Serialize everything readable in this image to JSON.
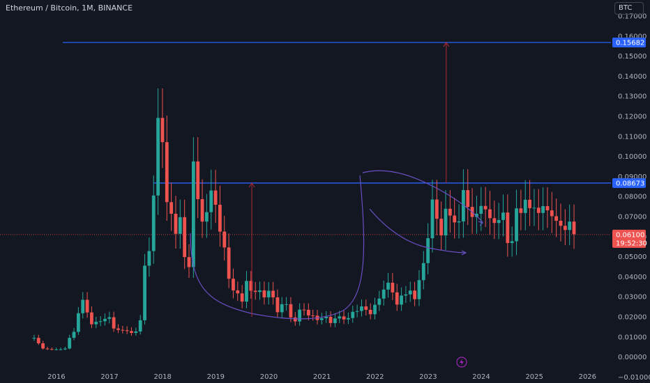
{
  "header": {
    "title": "Ethereum / Bitcoin, 1M, BINANCE",
    "currency_button": "BTC"
  },
  "colors": {
    "background": "#131722",
    "up": "#26a69a",
    "down": "#ef5350",
    "hline": "#2962ff",
    "arrow": "#b22833",
    "curve": "#6a4fc4"
  },
  "icons": {
    "bottom": "lightning-icon"
  },
  "chart_data": {
    "type": "candlestick",
    "title": "Ethereum / Bitcoin, 1M, BINANCE",
    "ylim": [
      -0.013,
      0.178
    ],
    "xlim": [
      2015.2,
      2026.6
    ],
    "y_ticks": [
      "0.17000",
      "0.16000",
      "0.15000",
      "0.14000",
      "0.13000",
      "0.12000",
      "0.11000",
      "0.10000",
      "0.09000",
      "0.08000",
      "0.07000",
      "0.06000",
      "0.05000",
      "0.04000",
      "0.03000",
      "0.02000",
      "0.01000",
      "0.00000",
      "−0.01000"
    ],
    "y_tick_values": [
      0.17,
      0.16,
      0.15,
      0.14,
      0.13,
      0.12,
      0.11,
      0.1,
      0.09,
      0.08,
      0.07,
      0.06,
      0.05,
      0.04,
      0.03,
      0.02,
      0.01,
      0.0,
      -0.01
    ],
    "x_ticks": [
      "2016",
      "2017",
      "2018",
      "2019",
      "2020",
      "2021",
      "2022",
      "2023",
      "2024",
      "2025",
      "2026"
    ],
    "x_tick_values": [
      2016,
      2017,
      2018,
      2019,
      2020,
      2021,
      2022,
      2023,
      2024,
      2025,
      2026
    ],
    "horizontal_lines": [
      {
        "value": 0.15682,
        "label": "0.15682",
        "from_x": 2016.12
      },
      {
        "value": 0.08673,
        "label": "0.08673",
        "from_x": 2017.83
      }
    ],
    "last_price": {
      "value": 0.061,
      "label": "0.06100",
      "countdown": "19:52:30"
    },
    "arrows": [
      {
        "x": 2019.68,
        "from": 0.02,
        "to": 0.0867
      },
      {
        "x": 2023.34,
        "from": 0.0867,
        "to": 0.1568
      }
    ],
    "closes": [
      0.0095,
      0.0068,
      0.0042,
      0.0039,
      0.0038,
      0.0038,
      0.0038,
      0.0042,
      0.0095,
      0.0125,
      0.0218,
      0.0285,
      0.0222,
      0.0163,
      0.0175,
      0.0178,
      0.019,
      0.0198,
      0.0142,
      0.0135,
      0.0133,
      0.0129,
      0.012,
      0.0127,
      0.0183,
      0.0455,
      0.0528,
      0.0805,
      0.1192,
      0.1071,
      0.0772,
      0.0714,
      0.0614,
      0.0697,
      0.0498,
      0.0448,
      0.0975,
      0.0787,
      0.0675,
      0.0722,
      0.083,
      0.0759,
      0.0625,
      0.0546,
      0.039,
      0.0332,
      0.0317,
      0.0276,
      0.0379,
      0.033,
      0.0324,
      0.0332,
      0.0297,
      0.033,
      0.0297,
      0.0223,
      0.0263,
      0.0263,
      0.0197,
      0.0177,
      0.0236,
      0.0235,
      0.0207,
      0.0206,
      0.0184,
      0.0193,
      0.02,
      0.0169,
      0.0192,
      0.0202,
      0.0187,
      0.0194,
      0.0225,
      0.0229,
      0.0252,
      0.0235,
      0.0213,
      0.026,
      0.0291,
      0.0336,
      0.037,
      0.0322,
      0.0261,
      0.0306,
      0.0312,
      0.0331,
      0.0288,
      0.0383,
      0.0468,
      0.0592,
      0.0785,
      0.0689,
      0.0606,
      0.0739,
      0.0705,
      0.0671,
      0.0676,
      0.0832,
      0.0748,
      0.0698,
      0.0714,
      0.0753,
      0.0736,
      0.0692,
      0.0668,
      0.0683,
      0.072,
      0.0568,
      0.0577,
      0.0741,
      0.0718,
      0.0784,
      0.0742,
      0.0744,
      0.0718,
      0.0752,
      0.0731,
      0.0702,
      0.0679,
      0.0654,
      0.0633,
      0.0675,
      0.0612
    ]
  }
}
